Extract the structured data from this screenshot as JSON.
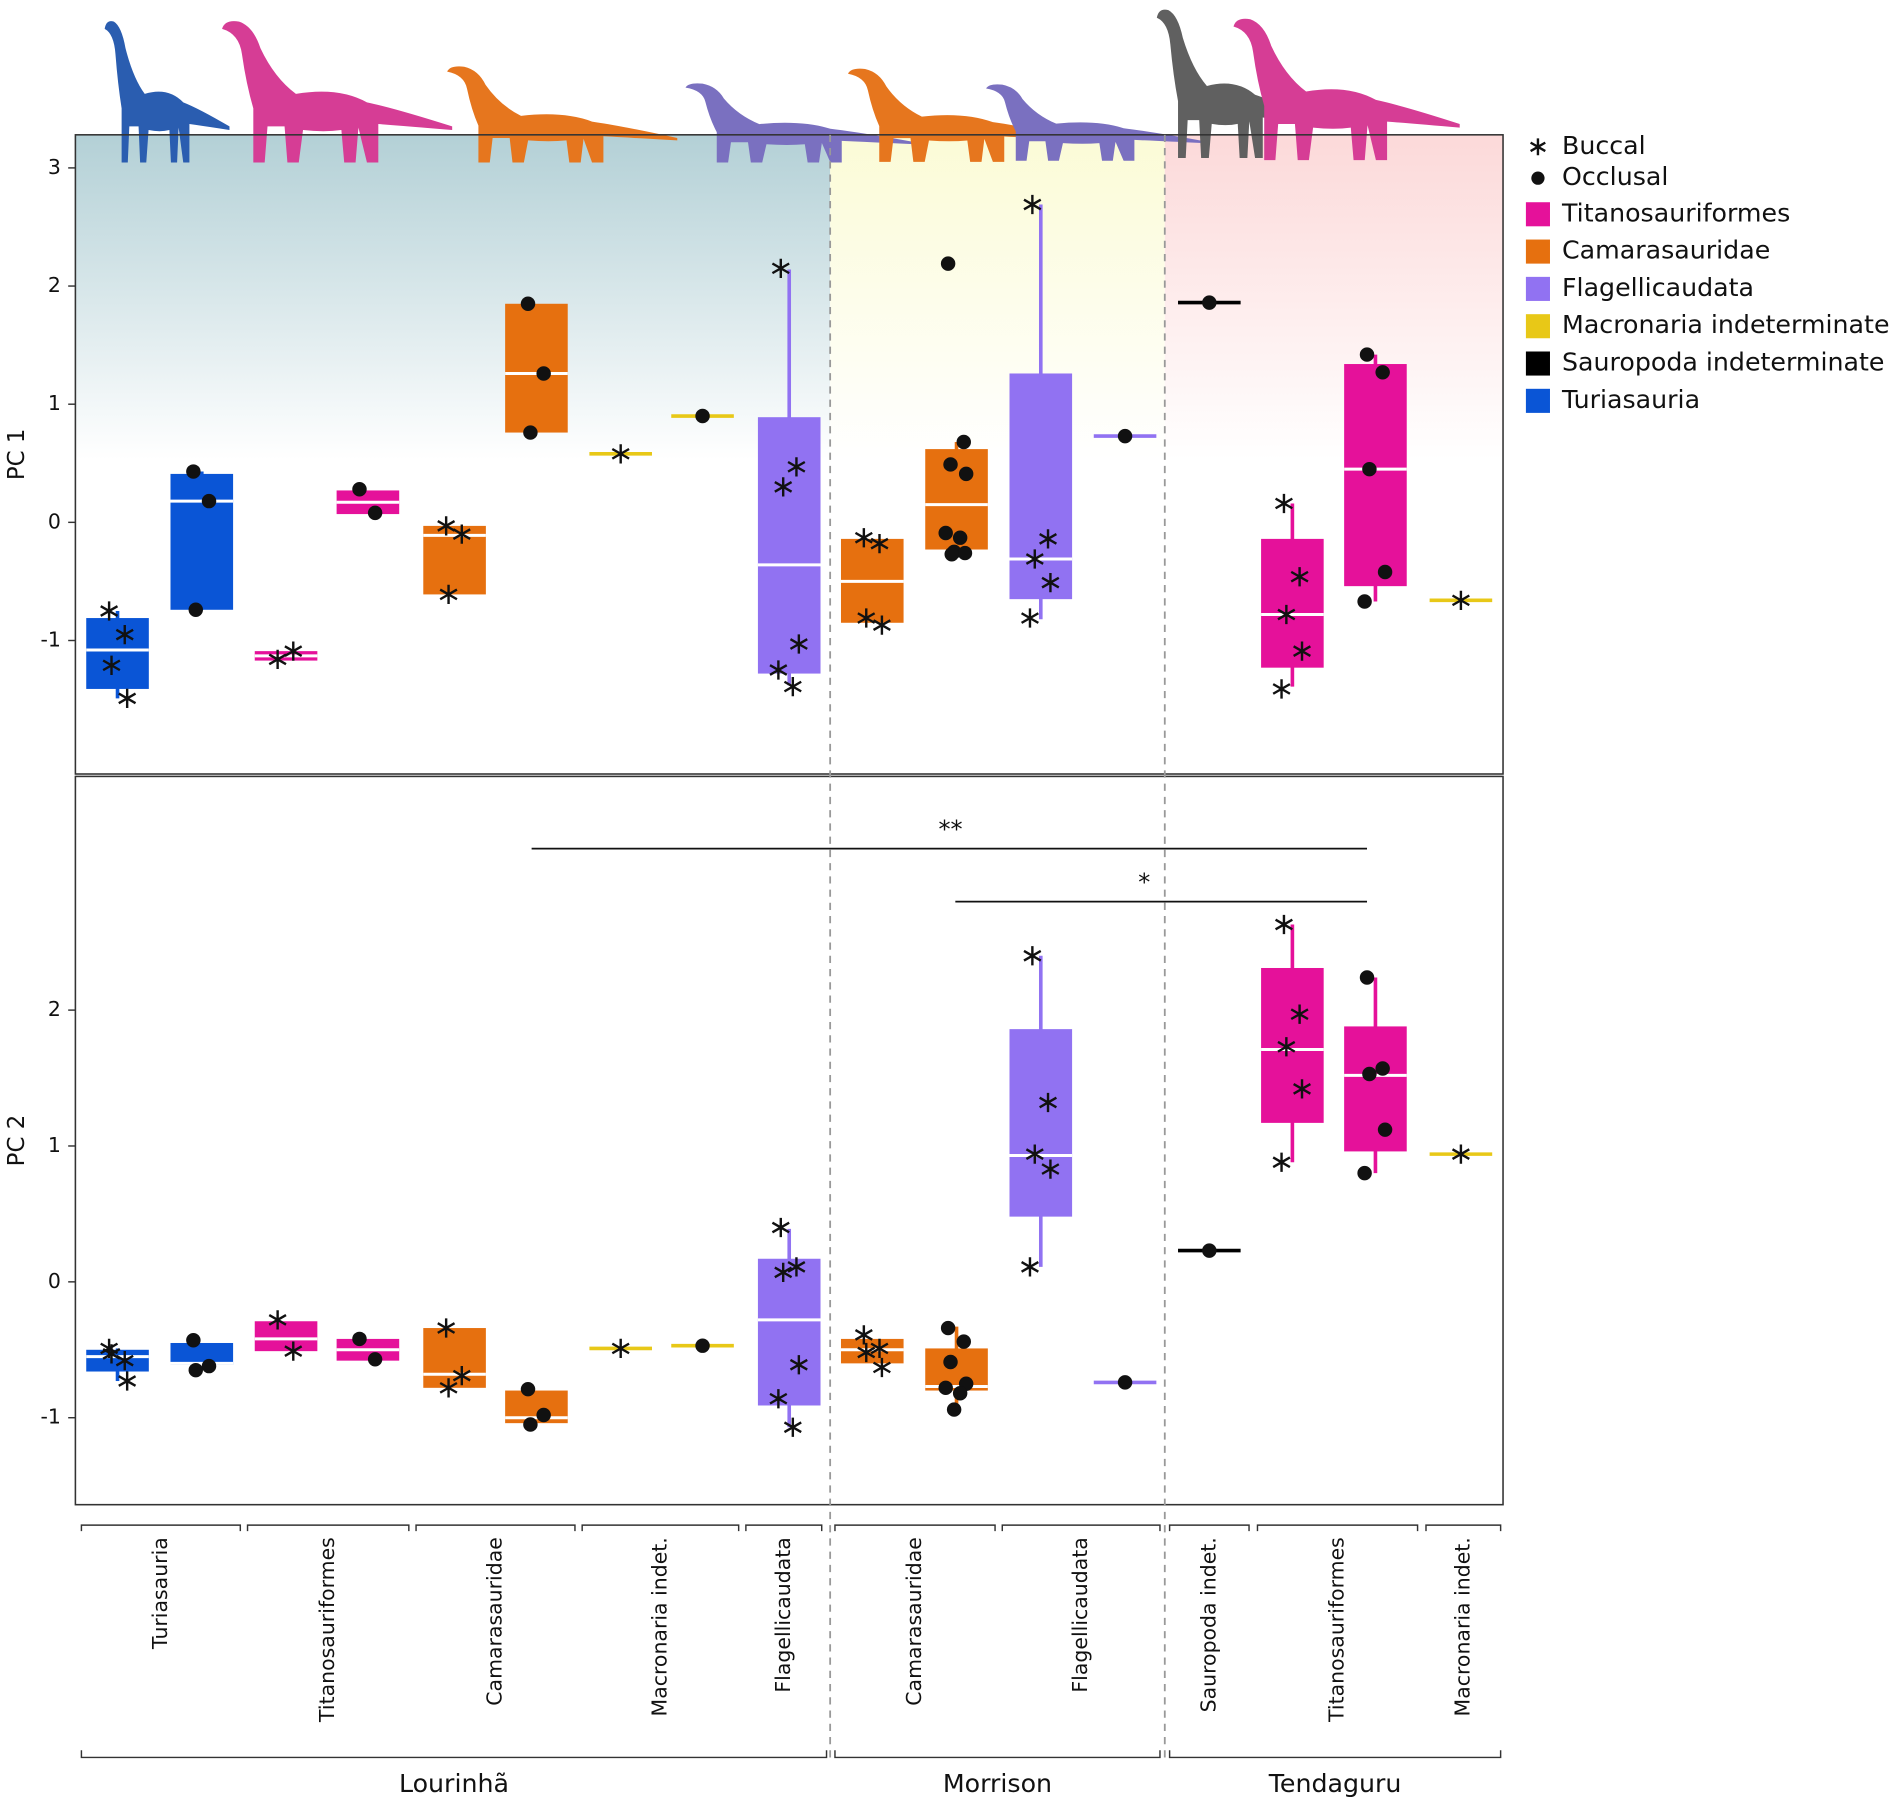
{
  "chart_data": [
    {
      "type": "box",
      "ylabel": "PC 1",
      "ylim": [
        -2.13,
        3.28
      ],
      "yticks": [
        -1,
        0,
        1,
        2,
        3
      ],
      "boxes": [
        {
          "color": "#0a55d6",
          "marker": "asterisk",
          "q1": -1.41,
          "median": -1.08,
          "q3": -0.81,
          "whisker_low": -1.49,
          "whisker_high": -0.75,
          "points": [
            -0.75,
            -0.95,
            -1.21,
            -1.49
          ]
        },
        {
          "color": "#0a55d6",
          "marker": "dot",
          "q1": -0.74,
          "median": 0.18,
          "q3": 0.41,
          "whisker_low": -0.74,
          "whisker_high": 0.43,
          "points": [
            0.43,
            0.18,
            -0.74
          ]
        },
        {
          "color": "#e5119a",
          "marker": "asterisk",
          "q1": -1.17,
          "median": -1.13,
          "q3": -1.09,
          "points": [
            -1.16,
            -1.09
          ]
        },
        {
          "color": "#e5119a",
          "marker": "dot",
          "q1": 0.07,
          "median": 0.17,
          "q3": 0.27,
          "points": [
            0.28,
            0.08
          ]
        },
        {
          "color": "#e6700f",
          "marker": "asterisk",
          "q1": -0.61,
          "median": -0.11,
          "q3": -0.03,
          "points": [
            -0.03,
            -0.1,
            -0.61
          ]
        },
        {
          "color": "#e6700f",
          "marker": "dot",
          "q1": 0.76,
          "median": 1.26,
          "q3": 1.85,
          "points": [
            1.85,
            1.26,
            0.76
          ]
        },
        {
          "color": "#e8c817",
          "marker": "asterisk",
          "median": 0.58,
          "points": [
            0.58
          ]
        },
        {
          "color": "#e8c817",
          "marker": "dot",
          "median": 0.9,
          "points": [
            0.9
          ]
        },
        {
          "color": "#9172f2",
          "marker": "asterisk",
          "q1": -1.28,
          "median": -0.36,
          "q3": 0.89,
          "whisker_low": -1.38,
          "whisker_high": 2.14,
          "points": [
            2.15,
            0.47,
            0.3,
            -1.03,
            -1.25,
            -1.39
          ]
        },
        {
          "color": "#e6700f",
          "marker": "asterisk",
          "q1": -0.85,
          "median": -0.5,
          "q3": -0.14,
          "points": [
            -0.13,
            -0.18,
            -0.81,
            -0.87
          ]
        },
        {
          "color": "#e6700f",
          "marker": "dot",
          "q1": -0.23,
          "median": 0.15,
          "q3": 0.62,
          "whisker_low": -0.27,
          "whisker_high": 0.68,
          "points": [
            2.19,
            0.68,
            0.49,
            0.41,
            -0.09,
            -0.13,
            -0.25,
            -0.26,
            -0.27
          ]
        },
        {
          "color": "#9172f2",
          "marker": "asterisk",
          "q1": -0.65,
          "median": -0.31,
          "q3": 1.26,
          "whisker_low": -0.82,
          "whisker_high": 2.69,
          "points": [
            2.69,
            -0.14,
            -0.31,
            -0.51,
            -0.81
          ]
        },
        {
          "color": "#9172f2",
          "marker": "dot",
          "median": 0.73,
          "points": [
            0.73
          ]
        },
        {
          "color": "#000000",
          "marker": "dot",
          "median": 1.86,
          "points": [
            1.86
          ]
        },
        {
          "color": "#e5119a",
          "marker": "asterisk",
          "q1": -1.23,
          "median": -0.78,
          "q3": -0.14,
          "whisker_low": -1.39,
          "whisker_high": 0.16,
          "points": [
            0.16,
            -0.46,
            -0.78,
            -1.09,
            -1.41
          ]
        },
        {
          "color": "#e5119a",
          "marker": "dot",
          "q1": -0.54,
          "median": 0.45,
          "q3": 1.34,
          "whisker_low": -0.67,
          "whisker_high": 1.42,
          "points": [
            1.42,
            1.27,
            0.45,
            -0.42,
            -0.67
          ]
        },
        {
          "color": "#e8c817",
          "marker": "asterisk",
          "median": -0.66,
          "points": [
            -0.66
          ]
        }
      ]
    },
    {
      "type": "box",
      "ylabel": "PC 2",
      "ylim": [
        -1.64,
        3.72
      ],
      "yticks": [
        -1,
        0,
        1,
        2
      ],
      "annotations": [
        "**",
        "*"
      ],
      "boxes": [
        {
          "color": "#0a55d6",
          "marker": "asterisk",
          "q1": -0.66,
          "median": -0.55,
          "q3": -0.5,
          "whisker_low": -0.73,
          "whisker_high": -0.49,
          "points": [
            -0.49,
            -0.58,
            -0.53,
            -0.73
          ]
        },
        {
          "color": "#0a55d6",
          "marker": "dot",
          "q1": -0.61,
          "median": -0.6,
          "q3": -0.45,
          "points": [
            -0.43,
            -0.62,
            -0.65
          ]
        },
        {
          "color": "#e5119a",
          "marker": "asterisk",
          "q1": -0.51,
          "median": -0.42,
          "q3": -0.29,
          "points": [
            -0.28,
            -0.51
          ]
        },
        {
          "color": "#e5119a",
          "marker": "dot",
          "q1": -0.58,
          "median": -0.5,
          "q3": -0.42,
          "points": [
            -0.42,
            -0.57
          ]
        },
        {
          "color": "#e6700f",
          "marker": "asterisk",
          "q1": -0.78,
          "median": -0.68,
          "q3": -0.34,
          "points": [
            -0.34,
            -0.69,
            -0.78
          ]
        },
        {
          "color": "#e6700f",
          "marker": "dot",
          "q1": -1.04,
          "median": -1.0,
          "q3": -0.8,
          "points": [
            -0.79,
            -0.98,
            -1.05
          ]
        },
        {
          "color": "#e8c817",
          "marker": "asterisk",
          "median": -0.49,
          "points": [
            -0.49
          ]
        },
        {
          "color": "#e8c817",
          "marker": "dot",
          "median": -0.47,
          "points": [
            -0.47
          ]
        },
        {
          "color": "#9172f2",
          "marker": "asterisk",
          "q1": -0.91,
          "median": -0.28,
          "q3": 0.17,
          "whisker_low": -1.07,
          "whisker_high": 0.39,
          "points": [
            0.4,
            0.11,
            0.07,
            -0.61,
            -0.86,
            -1.07
          ]
        },
        {
          "color": "#e6700f",
          "marker": "asterisk",
          "q1": -0.6,
          "median": -0.5,
          "q3": -0.42,
          "points": [
            -0.39,
            -0.49,
            -0.52,
            -0.63
          ]
        },
        {
          "color": "#e6700f",
          "marker": "dot",
          "q1": -0.8,
          "median": -0.77,
          "q3": -0.49,
          "whisker_low": -0.94,
          "whisker_high": -0.33,
          "points": [
            -0.34,
            -0.44,
            -0.59,
            -0.75,
            -0.78,
            -0.82,
            -0.94
          ]
        },
        {
          "color": "#9172f2",
          "marker": "asterisk",
          "q1": 0.48,
          "median": 0.93,
          "q3": 1.86,
          "whisker_low": 0.11,
          "whisker_high": 2.4,
          "points": [
            2.4,
            1.32,
            0.94,
            0.83,
            0.11
          ]
        },
        {
          "color": "#9172f2",
          "marker": "dot",
          "median": -0.74,
          "points": [
            -0.74
          ]
        },
        {
          "color": "#000000",
          "marker": "dot",
          "median": 0.23,
          "points": [
            0.23
          ]
        },
        {
          "color": "#e5119a",
          "marker": "asterisk",
          "q1": 1.17,
          "median": 1.71,
          "q3": 2.31,
          "whisker_low": 0.88,
          "whisker_high": 2.63,
          "points": [
            2.63,
            1.97,
            1.73,
            1.42,
            0.88
          ]
        },
        {
          "color": "#e5119a",
          "marker": "dot",
          "q1": 0.96,
          "median": 1.52,
          "q3": 1.88,
          "whisker_low": 0.8,
          "whisker_high": 2.24,
          "points": [
            2.24,
            1.57,
            1.53,
            1.12,
            0.8
          ]
        },
        {
          "color": "#e8c817",
          "marker": "asterisk",
          "median": 0.94,
          "points": [
            0.94
          ]
        }
      ]
    }
  ],
  "x_axis": {
    "sites": [
      {
        "name": "Lourinhã",
        "clades": [
          "Turiasauria",
          "Titanosauriformes",
          "Camarasauridae",
          "Macronaria indet.",
          "Flagellicaudata"
        ]
      },
      {
        "name": "Morrison",
        "clades": [
          "Camarasauridae",
          "Flagellicaudata"
        ]
      },
      {
        "name": "Tendaguru",
        "clades": [
          "Sauropoda indet.",
          "Titanosauriformes",
          "Macronaria indet."
        ]
      }
    ]
  },
  "legend": [
    {
      "name": "Buccal",
      "marker": "asterisk"
    },
    {
      "name": "Occlusal",
      "marker": "dot"
    },
    {
      "name": "Titanosauriformes",
      "color": "#e5119a"
    },
    {
      "name": "Camarasauridae",
      "color": "#e6700f"
    },
    {
      "name": "Flagellicaudata",
      "color": "#9172f2"
    },
    {
      "name": "Macronaria indeterminate",
      "color": "#e8c817"
    },
    {
      "name": "Sauropoda indeterminate",
      "color": "#000000"
    },
    {
      "name": "Turiasauria",
      "color": "#0a55d6"
    }
  ]
}
